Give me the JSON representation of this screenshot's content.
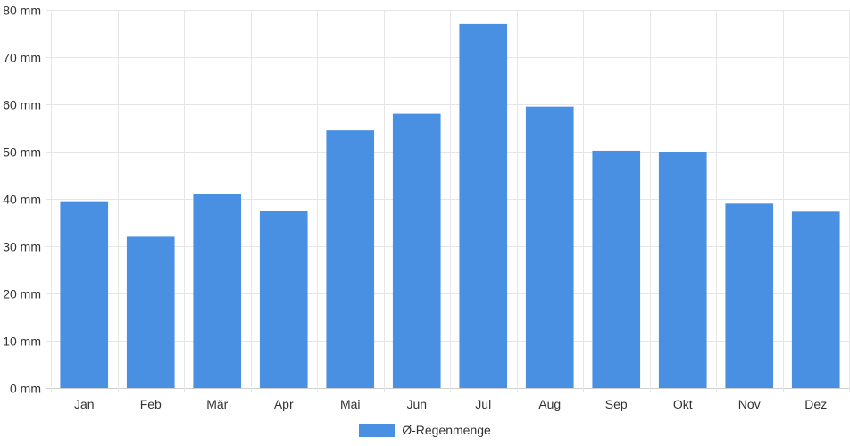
{
  "chart_data": {
    "type": "bar",
    "categories": [
      "Jan",
      "Feb",
      "Mär",
      "Apr",
      "Mai",
      "Jun",
      "Jul",
      "Aug",
      "Sep",
      "Okt",
      "Nov",
      "Dez"
    ],
    "series": [
      {
        "name": "Ø-Regenmenge",
        "values": [
          39.5,
          32,
          41,
          37.5,
          54.5,
          58,
          77,
          59.5,
          50.2,
          50,
          39,
          37.3
        ],
        "color": "#4a90e2"
      }
    ],
    "y_unit": "mm",
    "ylim": [
      0,
      80
    ],
    "y_ticks": [
      "0 mm",
      "10 mm",
      "20 mm",
      "30 mm",
      "40 mm",
      "50 mm",
      "60 mm",
      "70 mm",
      "80 mm"
    ],
    "grid": true,
    "legend_position": "bottom",
    "title": "",
    "xlabel": "",
    "ylabel": ""
  }
}
